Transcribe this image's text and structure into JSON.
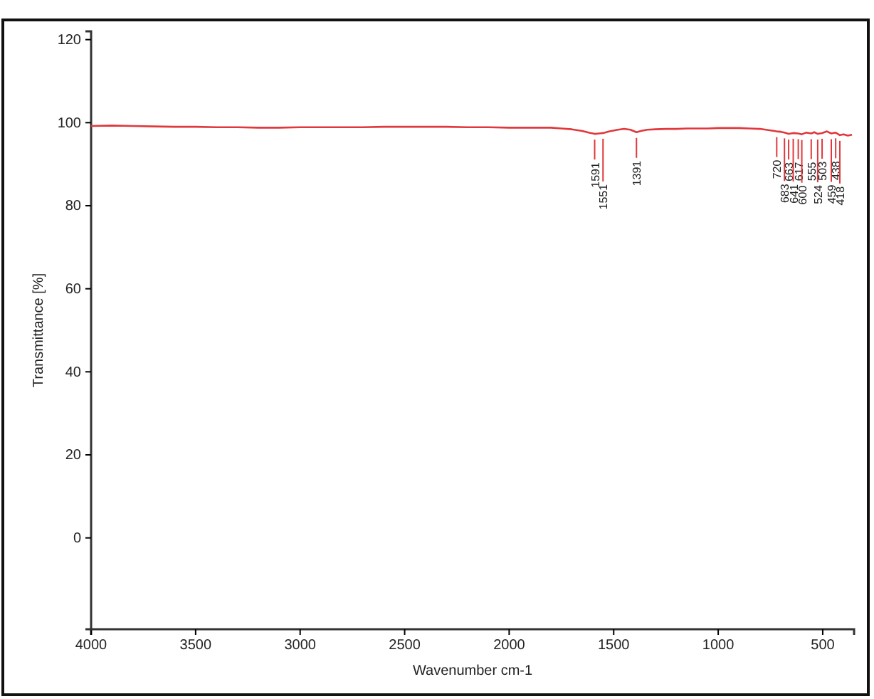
{
  "chart_data": {
    "type": "line",
    "xlabel": "Wavenumber cm-1",
    "ylabel": "Transmittance [%]",
    "xlim": [
      4000,
      350
    ],
    "xticks": [
      4000,
      3500,
      3000,
      2500,
      2000,
      1500,
      1000,
      500
    ],
    "ylim": [
      -22,
      122
    ],
    "yticks": [
      0,
      20,
      40,
      60,
      80,
      100,
      120
    ],
    "grid": false,
    "marker": "none",
    "series": [
      {
        "color": "#e0383c",
        "x": [
          4000,
          3900,
          3800,
          3700,
          3600,
          3500,
          3400,
          3300,
          3200,
          3100,
          3000,
          2900,
          2800,
          2700,
          2600,
          2500,
          2400,
          2300,
          2200,
          2100,
          2000,
          1900,
          1800,
          1750,
          1700,
          1650,
          1620,
          1591,
          1570,
          1551,
          1520,
          1480,
          1450,
          1420,
          1391,
          1370,
          1340,
          1300,
          1250,
          1200,
          1150,
          1100,
          1050,
          1000,
          950,
          900,
          850,
          800,
          760,
          720,
          700,
          683,
          663,
          641,
          617,
          600,
          580,
          555,
          540,
          524,
          503,
          480,
          459,
          438,
          418,
          400,
          380,
          360
        ],
        "values": [
          99.2,
          99.3,
          99.2,
          99.1,
          99.0,
          99.0,
          98.9,
          98.9,
          98.8,
          98.8,
          98.9,
          98.9,
          98.9,
          98.9,
          99.0,
          99.0,
          99.0,
          99.0,
          98.9,
          98.9,
          98.8,
          98.8,
          98.8,
          98.6,
          98.4,
          98.0,
          97.6,
          97.3,
          97.4,
          97.5,
          97.9,
          98.3,
          98.5,
          98.3,
          97.7,
          98.0,
          98.3,
          98.4,
          98.5,
          98.5,
          98.6,
          98.6,
          98.6,
          98.7,
          98.7,
          98.7,
          98.6,
          98.5,
          98.2,
          97.9,
          97.8,
          97.6,
          97.3,
          97.5,
          97.4,
          97.2,
          97.6,
          97.4,
          97.7,
          97.3,
          97.5,
          97.9,
          97.4,
          97.6,
          97.0,
          97.2,
          96.9,
          97.1
        ]
      }
    ],
    "annotations": [
      {
        "text": "1591",
        "x": 1591,
        "y": 97.3
      },
      {
        "text": "1551",
        "x": 1551,
        "y": 97.5
      },
      {
        "text": "1391",
        "x": 1391,
        "y": 97.7
      },
      {
        "text": "720",
        "x": 720,
        "y": 97.9
      },
      {
        "text": "683",
        "x": 683,
        "y": 97.6
      },
      {
        "text": "663",
        "x": 663,
        "y": 97.3
      },
      {
        "text": "641",
        "x": 641,
        "y": 97.5
      },
      {
        "text": "617",
        "x": 617,
        "y": 97.4
      },
      {
        "text": "600",
        "x": 600,
        "y": 97.2
      },
      {
        "text": "555",
        "x": 555,
        "y": 97.4
      },
      {
        "text": "524",
        "x": 524,
        "y": 97.3
      },
      {
        "text": "503",
        "x": 503,
        "y": 97.5
      },
      {
        "text": "459",
        "x": 459,
        "y": 97.4
      },
      {
        "text": "438",
        "x": 438,
        "y": 97.6
      },
      {
        "text": "418",
        "x": 418,
        "y": 97.0
      }
    ]
  }
}
